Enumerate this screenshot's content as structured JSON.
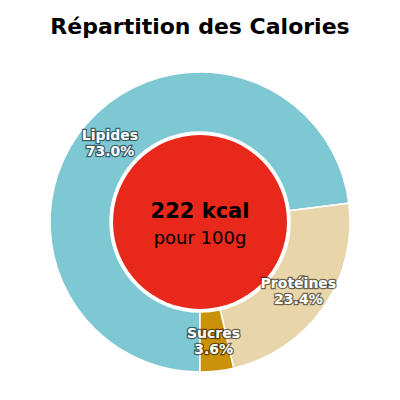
{
  "chart_data": {
    "type": "donut",
    "title": "Répartition des Calories",
    "categories": [
      "Lipides",
      "Protéines",
      "Sucres"
    ],
    "values": [
      73.0,
      23.4,
      3.6
    ],
    "value_labels": [
      "73.0%",
      "23.4%",
      "3.6%"
    ],
    "colors": [
      "#7ec8d3",
      "#e8d5aa",
      "#c9920a"
    ],
    "data_labels": true,
    "annotations": [
      "222 kcal",
      "pour 100g"
    ]
  }
}
